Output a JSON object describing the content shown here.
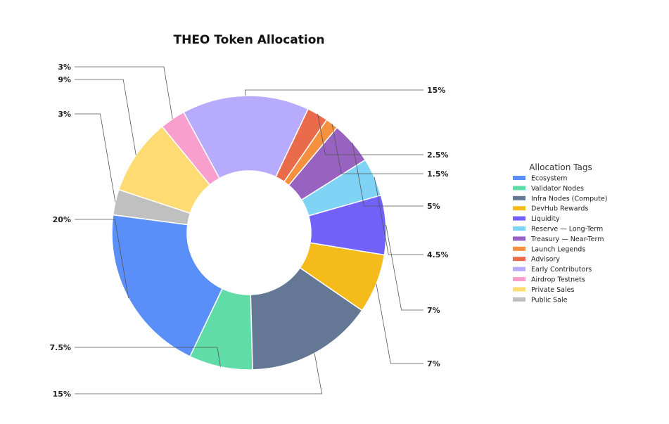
{
  "chart_data": {
    "type": "pie",
    "title": "THEO Token Allocation",
    "legend_title": "Allocation Tags",
    "legend_placement": "right",
    "donut": true,
    "slices": [
      {
        "label": "Ecosystem",
        "value": 20,
        "display": "20%",
        "color": "#5a8ef8"
      },
      {
        "label": "Validator Nodes",
        "value": 7.5,
        "display": "7.5%",
        "color": "#5fdca7"
      },
      {
        "label": "Infra Nodes (Compute)",
        "value": 15,
        "display": "15%",
        "color": "#647795"
      },
      {
        "label": "DevHub Rewards",
        "value": 7,
        "display": "7%",
        "color": "#f4bb1a"
      },
      {
        "label": "Liquidity",
        "value": 7,
        "display": "7%",
        "color": "#7262fa"
      },
      {
        "label": "Reserve — Long-Term",
        "value": 4.5,
        "display": "4.5%",
        "color": "#7fd3f5"
      },
      {
        "label": "Treasury — Near-Term",
        "value": 5,
        "display": "5%",
        "color": "#9762c0"
      },
      {
        "label": "Launch Legends",
        "value": 1.5,
        "display": "1.5%",
        "color": "#f5913e"
      },
      {
        "label": "Advisory",
        "value": 2.5,
        "display": "2.5%",
        "color": "#ea6b4c"
      },
      {
        "label": "Early Contributors",
        "value": 15,
        "display": "15%",
        "color": "#b6abfc"
      },
      {
        "label": "Airdrop Testnets",
        "value": 3,
        "display": "3%",
        "color": "#f99fce"
      },
      {
        "label": "Private Sales",
        "value": 9,
        "display": "9%",
        "color": "#fedb73"
      },
      {
        "label": "Public Sale",
        "value": 3,
        "display": "3%",
        "color": "#c0c0c0"
      }
    ]
  }
}
